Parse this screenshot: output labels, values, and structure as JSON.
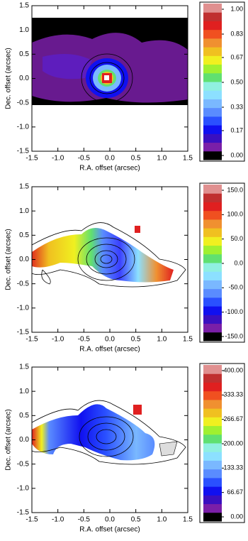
{
  "chart_data": [
    {
      "type": "heatmap",
      "xlabel": "R.A. offset (arcsec)",
      "ylabel": "Dec. offset (arcsec)",
      "xlim": [
        -1.5,
        1.5
      ],
      "ylim": [
        -1.5,
        1.5
      ],
      "xticks": [
        -1.5,
        {
          "value": -1.0,
          "label": "-1.0"
        },
        -0.5,
        {
          "value": 0.0,
          "label": "0.0"
        },
        0.5,
        {
          "value": 1.0,
          "label": "1.0"
        },
        1.5
      ],
      "yticks": [
        -1.5,
        {
          "value": -1.0,
          "label": "-1.0"
        },
        -0.5,
        {
          "value": 0.0,
          "label": "0.0"
        },
        0.5,
        {
          "value": 1.0,
          "label": "1.0"
        },
        1.5
      ],
      "colorbar": {
        "lim": [
          0,
          1
        ],
        "ticks": [
          {
            "value": 0,
            "label": "0.00"
          },
          0.17,
          0.33,
          {
            "value": 0.5,
            "label": "0.50"
          },
          0.67,
          0.83,
          {
            "value": 1,
            "label": "1.00"
          }
        ]
      }
    },
    {
      "type": "heatmap",
      "xlabel": "R.A. offset (arcsec)",
      "ylabel": "Dec. offset (arcsec)",
      "xlim": [
        -1.5,
        1.5
      ],
      "ylim": [
        -1.5,
        1.5
      ],
      "xticks": [
        -1.5,
        {
          "value": -1.0,
          "label": "-1.0"
        },
        -0.5,
        {
          "value": 0.0,
          "label": "0.0"
        },
        0.5,
        {
          "value": 1.0,
          "label": "1.0"
        },
        1.5
      ],
      "yticks": [
        -1.5,
        {
          "value": -1.0,
          "label": "-1.0"
        },
        -0.5,
        {
          "value": 0.0,
          "label": "0.0"
        },
        0.5,
        {
          "value": 1.0,
          "label": "1.0"
        },
        1.5
      ],
      "colorbar": {
        "lim": [
          -150,
          150
        ],
        "ticks": [
          {
            "value": -150,
            "label": "-150.0"
          },
          {
            "value": -100,
            "label": "-100.0"
          },
          {
            "value": -50,
            "label": "-50.0"
          },
          {
            "value": 0,
            "label": "0.0"
          },
          {
            "value": 50,
            "label": "50.0"
          },
          {
            "value": 100,
            "label": "100.0"
          },
          {
            "value": 150,
            "label": "150.0"
          }
        ]
      }
    },
    {
      "type": "heatmap",
      "xlabel": "R.A. offset (arcsec)",
      "ylabel": "Dec. offset (arcsec)",
      "xlim": [
        -1.5,
        1.5
      ],
      "ylim": [
        -1.5,
        1.5
      ],
      "xticks": [
        -1.5,
        {
          "value": -1.0,
          "label": "-1.0"
        },
        -0.5,
        {
          "value": 0.0,
          "label": "0.0"
        },
        0.5,
        {
          "value": 1.0,
          "label": "1.0"
        },
        1.5
      ],
      "yticks": [
        -1.5,
        {
          "value": -1.0,
          "label": "-1.0"
        },
        -0.5,
        {
          "value": 0.0,
          "label": "0.0"
        },
        0.5,
        {
          "value": 1.0,
          "label": "1.0"
        },
        1.5
      ],
      "colorbar": {
        "lim": [
          0,
          400
        ],
        "ticks": [
          {
            "value": 0,
            "label": "0.00"
          },
          66.67,
          133.33,
          {
            "value": 200,
            "label": "200.00"
          },
          266.67,
          333.33,
          {
            "value": 400,
            "label": "400.00"
          }
        ]
      }
    }
  ],
  "colormap": [
    "#000000",
    "#7a1fa8",
    "#3a10c0",
    "#1010f0",
    "#2a50ff",
    "#5a8cff",
    "#7ab8ff",
    "#8ce0ff",
    "#90f0e0",
    "#60e070",
    "#a0f030",
    "#f0f020",
    "#f0c020",
    "#f09030",
    "#f05020",
    "#e02020",
    "#c03030",
    "#e09090"
  ]
}
